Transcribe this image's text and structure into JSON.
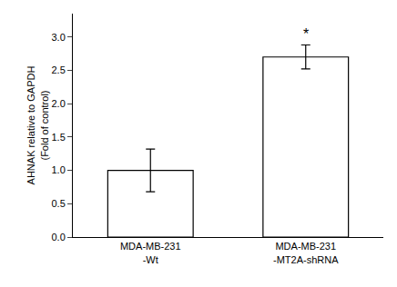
{
  "chart_data": {
    "type": "bar",
    "categories": [
      "MDA-MB-231\n-Wt",
      "MDA-MB-231\n-MT2A-shRNA"
    ],
    "values": [
      1.0,
      2.7
    ],
    "errors": [
      0.32,
      0.18
    ],
    "color": "#ffffff",
    "ylabel": "AHNAK relative to GAPDH\n(Fold of control)",
    "ylim": [
      0,
      3.35
    ],
    "yticks": [
      {
        "value": 0.0,
        "label": "0.0"
      },
      0.5,
      {
        "value": 1.0,
        "label": "1.0"
      },
      1.5,
      {
        "value": 2.0,
        "label": "2.0"
      },
      2.5,
      {
        "value": 3.0,
        "label": "3.0"
      }
    ],
    "annotations": [
      {
        "text": "*",
        "x": "MDA-MB-231\n-MT2A-shRNA"
      }
    ],
    "grid": false
  }
}
